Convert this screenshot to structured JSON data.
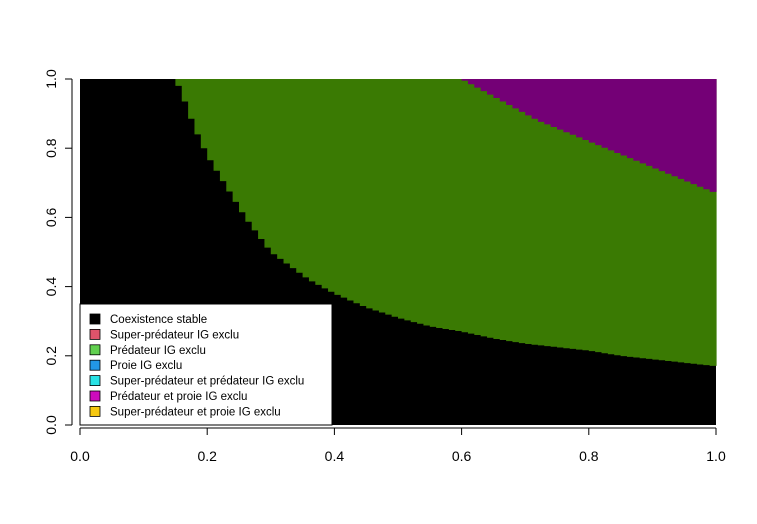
{
  "chart_data": {
    "type": "heatmap",
    "title": "",
    "xlabel": "",
    "ylabel": "",
    "xlim": [
      0,
      1
    ],
    "ylim": [
      0,
      1
    ],
    "x_ticks": [
      "0.0",
      "0.2",
      "0.4",
      "0.6",
      "0.8",
      "1.0"
    ],
    "y_ticks": [
      "0.0",
      "0.2",
      "0.4",
      "0.6",
      "0.8",
      "1.0"
    ],
    "grid": false,
    "legend_position": "bottom-left",
    "legend": [
      {
        "label": "Coexistence stable",
        "color": "#000000"
      },
      {
        "label": "Super-prédateur IG exclu",
        "color": "#DF536B"
      },
      {
        "label": "Prédateur IG exclu",
        "color": "#61D04F"
      },
      {
        "label": "Proie IG exclu",
        "color": "#2297E6"
      },
      {
        "label": "Super-prédateur et prédateur IG exclu",
        "color": "#28E2E5"
      },
      {
        "label": "Prédateur et proie IG exclu",
        "color": "#CD0BBC"
      },
      {
        "label": "Super-prédateur et proie IG exclu",
        "color": "#F5C710"
      }
    ],
    "region_colors": {
      "coexistence": "#000000",
      "predator_excluded": "#3A7A03",
      "predator_and_prey_excluded": "#740076"
    },
    "regions": [
      {
        "name": "Coexistence stable",
        "color_key": "coexistence",
        "description": "below the lower boundary"
      },
      {
        "name": "Prédateur IG exclu",
        "color_key": "predator_excluded",
        "description": "between lower and upper boundary"
      },
      {
        "name": "Prédateur et proie IG exclu",
        "color_key": "predator_and_prey_excluded",
        "description": "above the upper boundary"
      }
    ],
    "lower_boundary": {
      "x": [
        0.15,
        0.16,
        0.17,
        0.18,
        0.19,
        0.2,
        0.22,
        0.24,
        0.26,
        0.28,
        0.3,
        0.33,
        0.36,
        0.4,
        0.45,
        0.5,
        0.55,
        0.6,
        0.65,
        0.7,
        0.75,
        0.8,
        0.85,
        0.9,
        0.95,
        1.0
      ],
      "y": [
        1.0,
        0.96,
        0.91,
        0.86,
        0.82,
        0.78,
        0.72,
        0.66,
        0.6,
        0.55,
        0.5,
        0.46,
        0.42,
        0.38,
        0.34,
        0.31,
        0.285,
        0.27,
        0.25,
        0.235,
        0.225,
        0.215,
        0.2,
        0.19,
        0.18,
        0.17
      ]
    },
    "upper_boundary": {
      "x": [
        0.6,
        0.62,
        0.64,
        0.66,
        0.68,
        0.7,
        0.72,
        0.74,
        0.76,
        0.78,
        0.8,
        0.82,
        0.84,
        0.86,
        0.88,
        0.9,
        0.92,
        0.94,
        0.96,
        0.98,
        1.0
      ],
      "y": [
        1.0,
        0.98,
        0.96,
        0.94,
        0.92,
        0.9,
        0.88,
        0.865,
        0.85,
        0.835,
        0.82,
        0.805,
        0.79,
        0.775,
        0.76,
        0.745,
        0.73,
        0.715,
        0.7,
        0.685,
        0.67
      ]
    }
  }
}
